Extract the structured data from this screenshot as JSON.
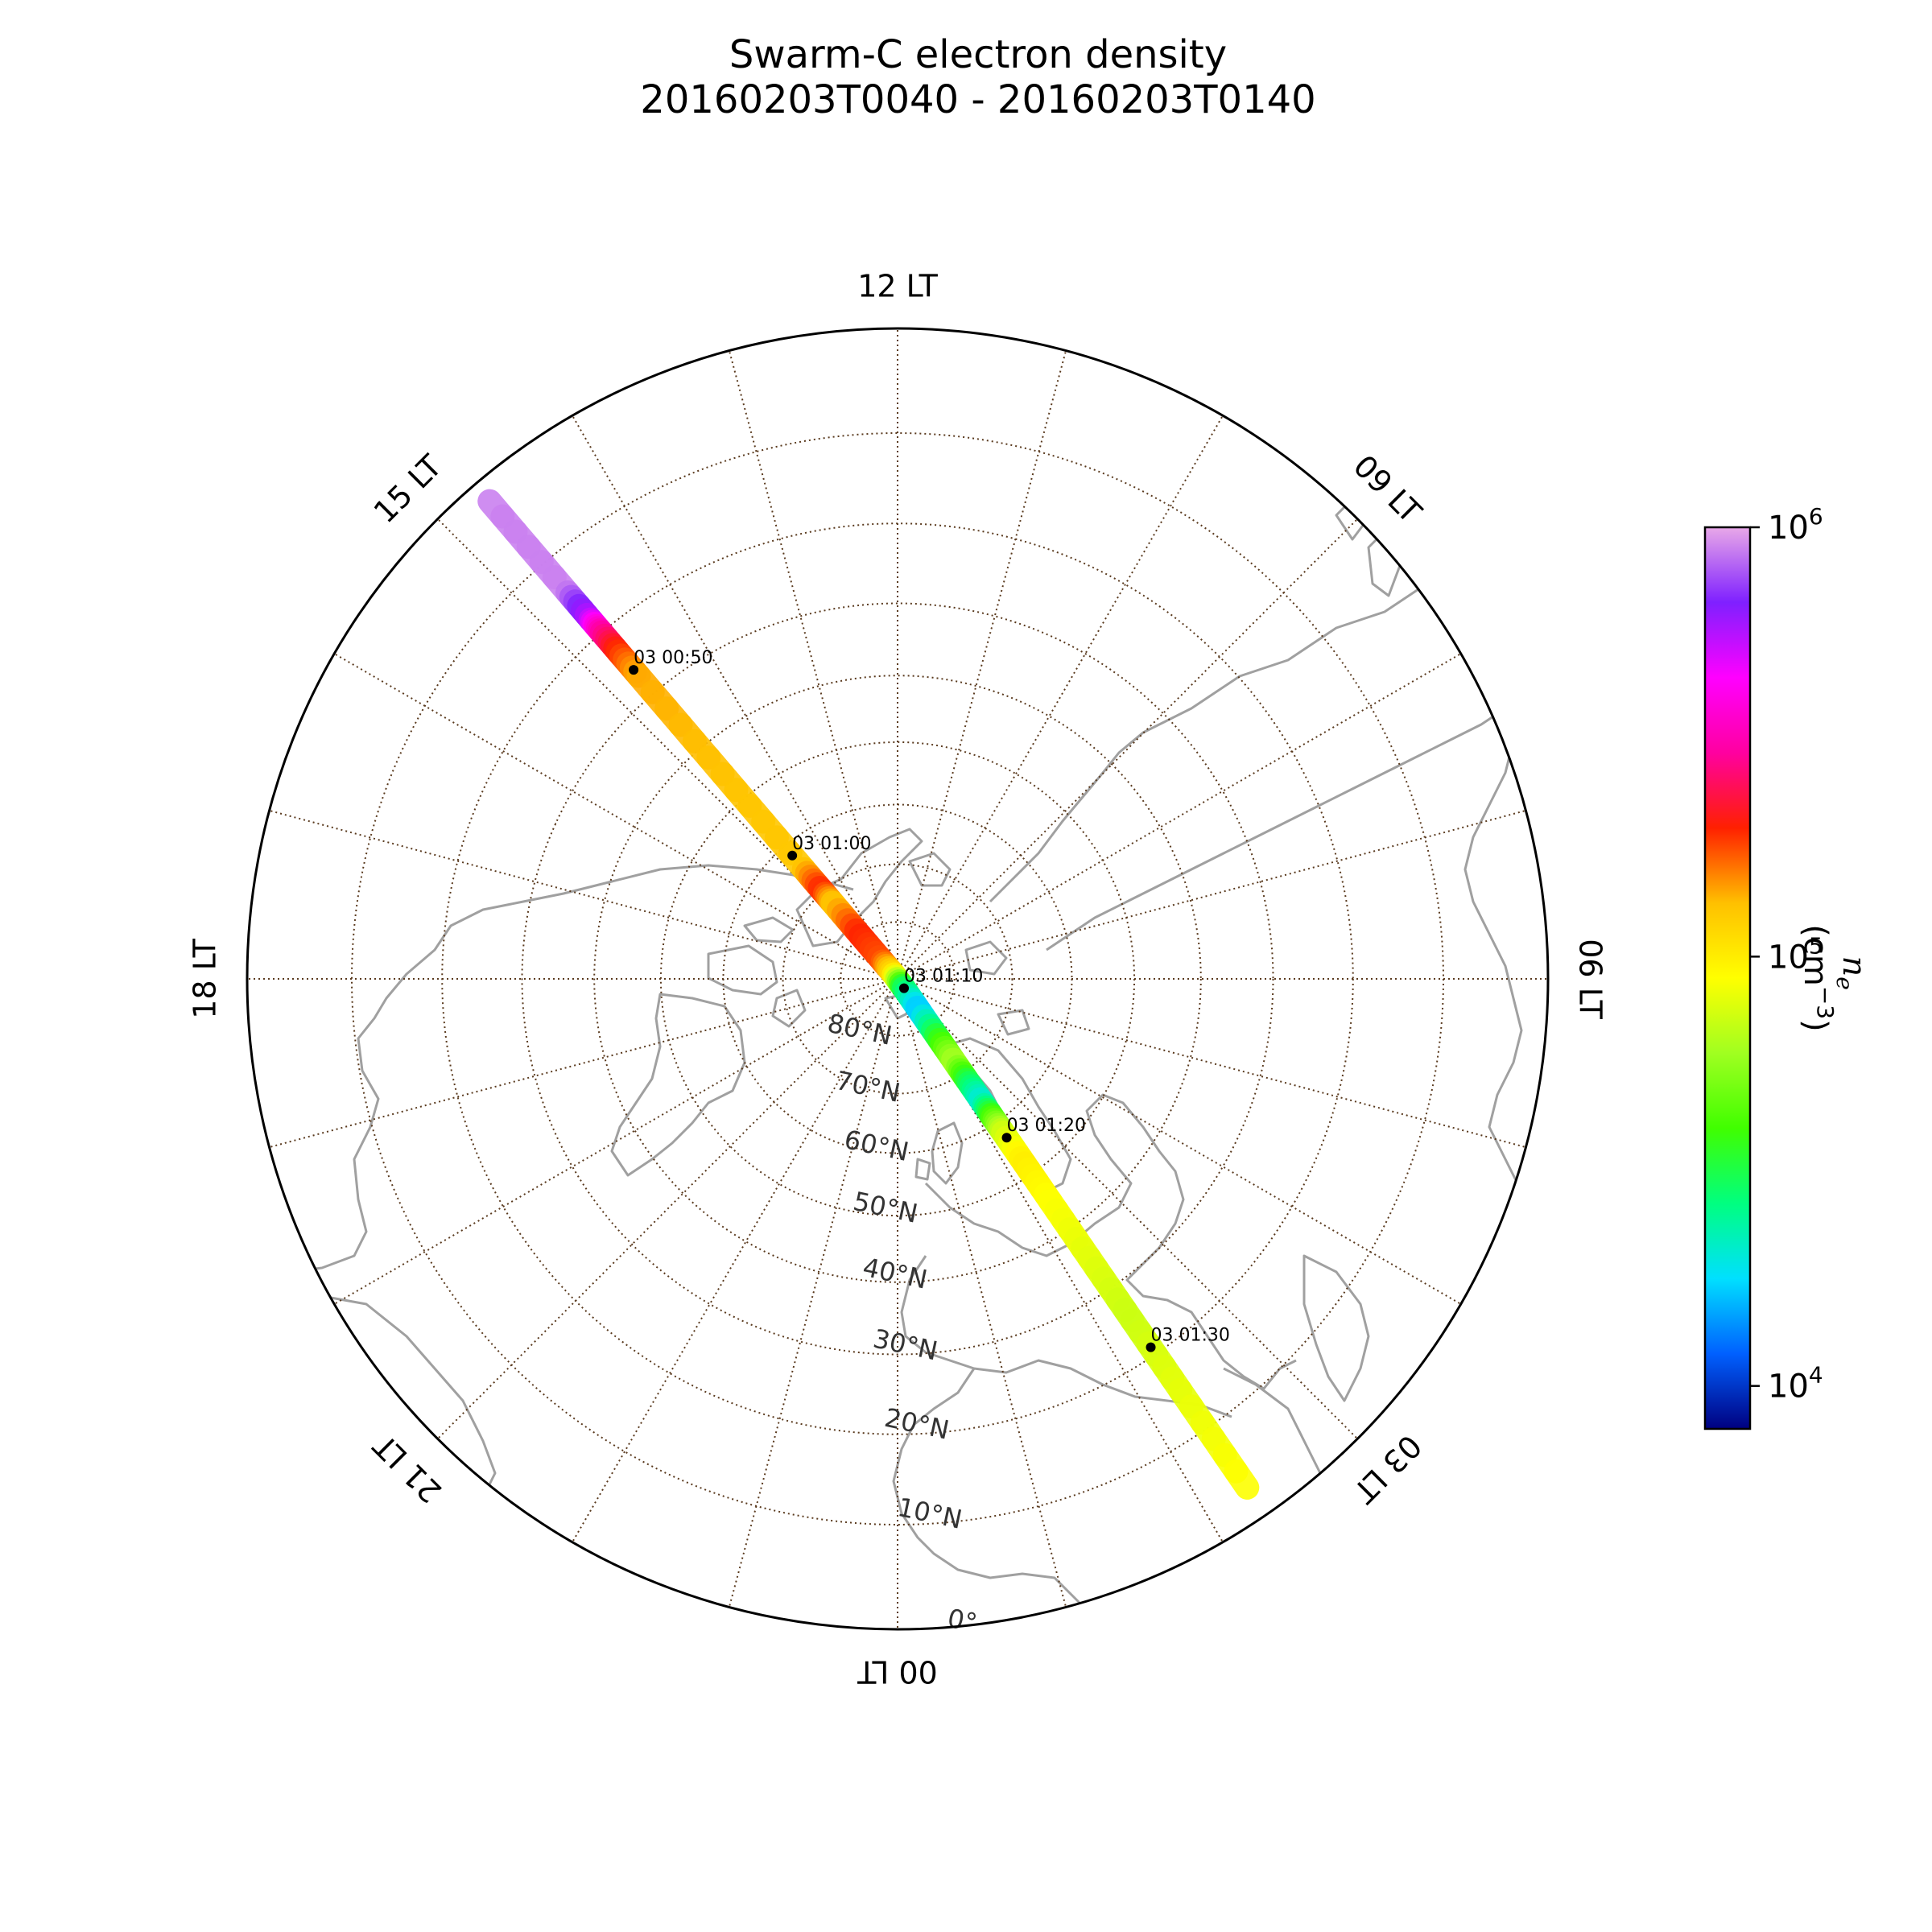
{
  "chart_data": {
    "type": "polar-map",
    "title_line1": "Swarm-C electron density",
    "title_line2": "20160203T0040 - 20160203T0140",
    "projection": "north-polar-stereographic",
    "lat_range": [
      0,
      90
    ],
    "lat_rings": [
      0,
      10,
      20,
      30,
      40,
      50,
      60,
      70,
      80
    ],
    "lat_labels": [
      "0°",
      "10°N",
      "20°N",
      "30°N",
      "40°N",
      "50°N",
      "60°N",
      "70°N",
      "80°N"
    ],
    "lt_labels": [
      {
        "lt": 12,
        "text": "12 LT"
      },
      {
        "lt": 9,
        "text": "09 LT"
      },
      {
        "lt": 6,
        "text": "06 LT"
      },
      {
        "lt": 3,
        "text": "03 LT"
      },
      {
        "lt": 0,
        "text": "00 LT"
      },
      {
        "lt": 21,
        "text": "21 LT"
      },
      {
        "lt": 18,
        "text": "18 LT"
      },
      {
        "lt": 15,
        "text": "15 LT"
      }
    ],
    "grid": true,
    "track": {
      "lt_dayside": 14.7,
      "lt_nightside": 2.3,
      "log_ne_by_lat": [
        {
          "side": "day",
          "lat": 2,
          "log_ne": 5.95
        },
        {
          "side": "day",
          "lat": 14,
          "log_ne": 5.95
        },
        {
          "side": "day",
          "lat": 18,
          "log_ne": 5.75
        },
        {
          "side": "day",
          "lat": 20,
          "log_ne": 5.5
        },
        {
          "side": "day",
          "lat": 23,
          "log_ne": 5.3
        },
        {
          "side": "day",
          "lat": 27,
          "log_ne": 5.15
        },
        {
          "side": "day",
          "lat": 45,
          "log_ne": 5.12
        },
        {
          "side": "day",
          "lat": 65,
          "log_ne": 5.1
        },
        {
          "side": "day",
          "lat": 70,
          "log_ne": 5.3
        },
        {
          "side": "day",
          "lat": 73,
          "log_ne": 5.1
        },
        {
          "side": "day",
          "lat": 80,
          "log_ne": 5.3
        },
        {
          "side": "day",
          "lat": 86,
          "log_ne": 5.25
        },
        {
          "side": "day",
          "lat": 89,
          "log_ne": 5.05
        },
        {
          "side": "night",
          "lat": 88,
          "log_ne": 4.5
        },
        {
          "side": "night",
          "lat": 83,
          "log_ne": 4.2
        },
        {
          "side": "night",
          "lat": 77,
          "log_ne": 4.55
        },
        {
          "side": "night",
          "lat": 72,
          "log_ne": 4.8
        },
        {
          "side": "night",
          "lat": 68,
          "log_ne": 4.5
        },
        {
          "side": "night",
          "lat": 64,
          "log_ne": 4.3
        },
        {
          "side": "night",
          "lat": 61,
          "log_ne": 4.6
        },
        {
          "side": "night",
          "lat": 58,
          "log_ne": 4.85
        },
        {
          "side": "night",
          "lat": 52,
          "log_ne": 5.0
        },
        {
          "side": "night",
          "lat": 45,
          "log_ne": 4.95
        },
        {
          "side": "night",
          "lat": 35,
          "log_ne": 4.9
        },
        {
          "side": "night",
          "lat": 25,
          "log_ne": 4.85
        },
        {
          "side": "night",
          "lat": 15,
          "log_ne": 4.9
        },
        {
          "side": "night",
          "lat": 3,
          "log_ne": 4.95
        }
      ],
      "time_marks": [
        {
          "label": "03 00:50",
          "side": "day",
          "lat": 26
        },
        {
          "label": "03 01:00",
          "side": "day",
          "lat": 62
        },
        {
          "label": "03 01:10",
          "side": "night",
          "lat": 88
        },
        {
          "label": "03 01:20",
          "side": "night",
          "lat": 57
        },
        {
          "label": "03 01:30",
          "side": "night",
          "lat": 21
        }
      ]
    },
    "colorbar": {
      "label_main": "n",
      "label_sub": "e",
      "label_unit": "(cm",
      "label_exp": "−3",
      "label_close": ")",
      "log_range": [
        3.9,
        6.0
      ],
      "ticks": [
        {
          "log": 4,
          "base": "10",
          "exp": "4"
        },
        {
          "log": 5,
          "base": "10",
          "exp": "5"
        },
        {
          "log": 6,
          "base": "10",
          "exp": "6"
        }
      ],
      "colormap": "gist_ncar",
      "stops": [
        "#000080",
        "#0060ff",
        "#00e0ff",
        "#00ff80",
        "#40ff00",
        "#a0ff20",
        "#ffff00",
        "#ffc000",
        "#ff2000",
        "#ff00a0",
        "#ff00ff",
        "#7f20ff",
        "#e8a8e8"
      ]
    },
    "colors": {
      "coast": "#a0a0a0",
      "grid": "#5a3a1e",
      "frame": "#000000"
    }
  }
}
